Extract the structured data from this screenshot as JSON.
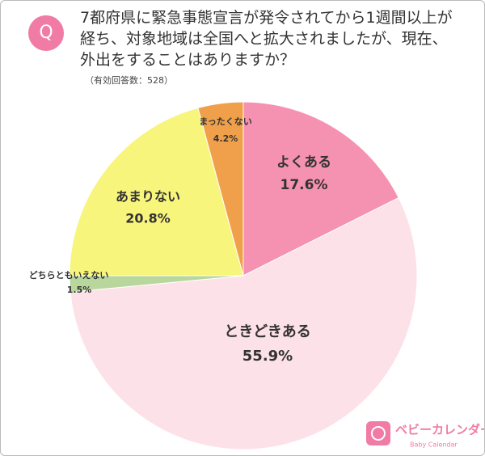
{
  "chart_data": {
    "type": "pie",
    "badge": "Q",
    "title": "7都府県に緊急事態宣言が発令されてから1週間以上が経ち、対象地域は全国へと拡大されましたが、現在、外出をすることはありますか？",
    "subtitle": "（有効回答数：528）",
    "categories": [
      "よくある",
      "ときどきある",
      "どちらともいえない",
      "あまりない",
      "まったくない"
    ],
    "values": [
      17.6,
      55.9,
      1.5,
      20.8,
      4.2
    ],
    "value_labels": [
      "17.6%",
      "55.9%",
      "1.5%",
      "20.8%",
      "4.2%"
    ],
    "colors": [
      "#f592b2",
      "#fde1e8",
      "#b9d79c",
      "#f8f57c",
      "#f0a04a"
    ],
    "brand": "ベビーカレンダー",
    "brand_sub": "Baby Calendar"
  }
}
